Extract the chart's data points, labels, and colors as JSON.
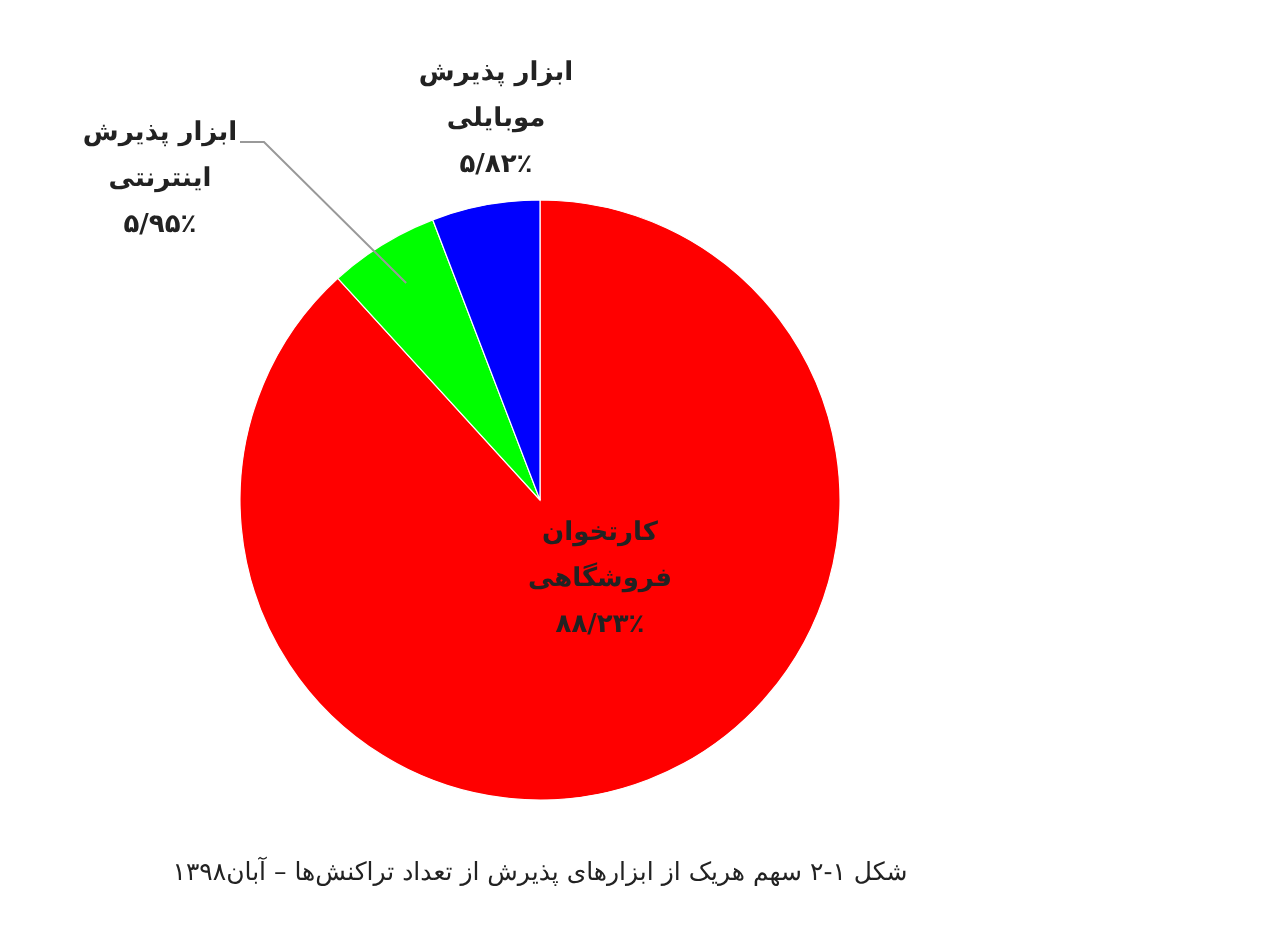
{
  "chart_data": {
    "type": "pie",
    "categories": [
      "کارتخوان فروشگاهی",
      "ابزار پذیرش اینترنتی",
      "ابزار پذیرش موبایلی"
    ],
    "values": [
      88.23,
      5.95,
      5.82
    ],
    "colors": [
      "#ff0000",
      "#00ff00",
      "#0000ff"
    ],
    "value_labels": [
      "۸۸/۲۳٪",
      "۵/۹۵٪",
      "۵/۸۲٪"
    ],
    "legend": false,
    "annotations": [
      "شکل ۱-۲ سهم هریک از ابزارهای پذیرش از تعداد تراکنش‌ها – آبان۱۳۹۸"
    ]
  }
}
